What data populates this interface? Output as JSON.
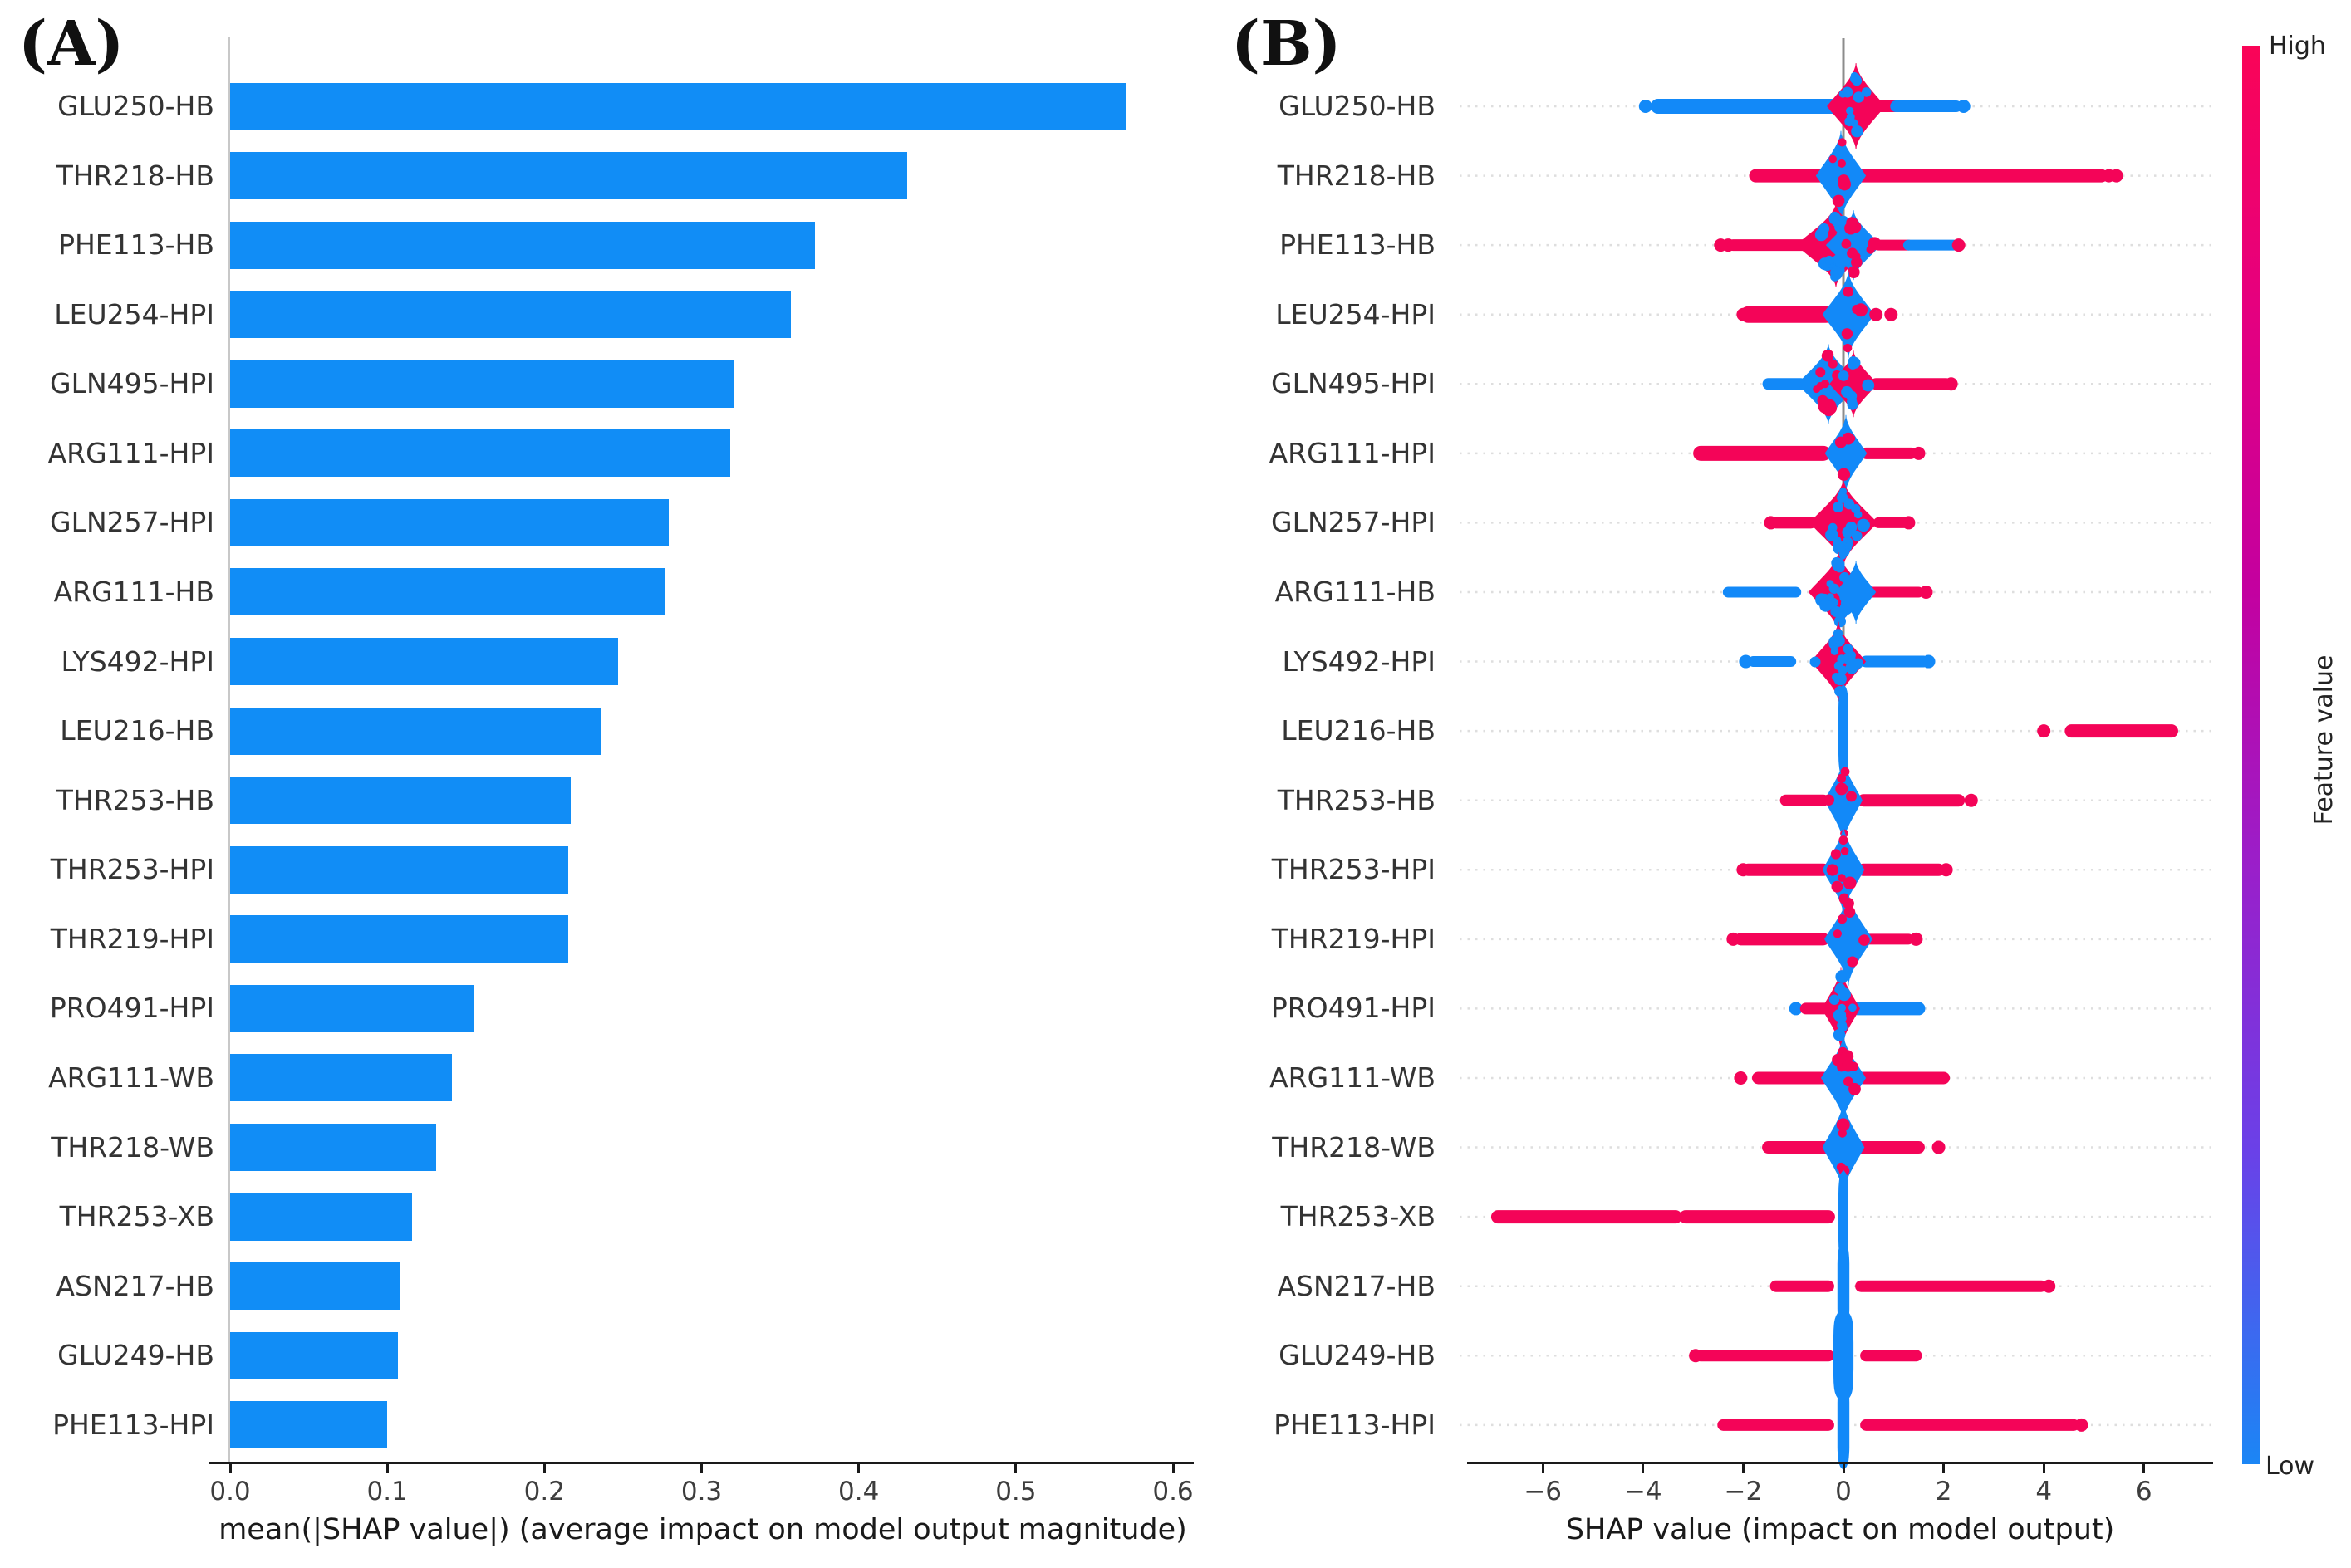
{
  "colors": {
    "red": "#f40458",
    "blue": "#1289f8",
    "bar": "#118df6",
    "zero_line": "#8c8c8c",
    "grid": "#dedede",
    "axis": "#1a1a1a",
    "spine": "#c8c8c8",
    "colorbar_top": "#fa0457",
    "colorbar_bottom": "#1b86f5"
  },
  "chart_data": [
    {
      "id": "A",
      "type": "bar",
      "orientation": "horizontal",
      "title": "(A)",
      "xlabel": "mean(|SHAP value|) (average impact on model output magnitude)",
      "ylabel": "",
      "xlim": [
        0,
        0.6
      ],
      "grid": false,
      "xticks": [
        0,
        0.1,
        0.2,
        0.3,
        0.4,
        0.5,
        0.6
      ],
      "xtick_labels": [
        "0.0",
        "0.1",
        "0.2",
        "0.3",
        "0.4",
        "0.5",
        "0.6"
      ],
      "categories": [
        "GLU250-HB",
        "THR218-HB",
        "PHE113-HB",
        "LEU254-HPI",
        "GLN495-HPI",
        "ARG111-HPI",
        "GLN257-HPI",
        "ARG111-HB",
        "LYS492-HPI",
        "LEU216-HB",
        "THR253-HB",
        "THR253-HPI",
        "THR219-HPI",
        "PRO491-HPI",
        "ARG111-WB",
        "THR218-WB",
        "THR253-XB",
        "ASN217-HB",
        "GLU249-HB",
        "PHE113-HPI"
      ],
      "values": [
        0.57,
        0.431,
        0.372,
        0.357,
        0.321,
        0.318,
        0.279,
        0.277,
        0.247,
        0.236,
        0.217,
        0.215,
        0.215,
        0.155,
        0.141,
        0.131,
        0.116,
        0.108,
        0.107,
        0.1
      ]
    },
    {
      "id": "B",
      "type": "beeswarm",
      "title": "(B)",
      "xlabel": "SHAP value (impact on model output)",
      "xlim": [
        -7.5,
        7.3
      ],
      "grid": "dotted-horizontal",
      "xticks": [
        -6,
        -4,
        -2,
        0,
        2,
        4,
        6
      ],
      "xtick_labels": [
        "−6",
        "−4",
        "−2",
        "0",
        "2",
        "4",
        "6"
      ],
      "colorbar": {
        "high": "High",
        "low": "Low",
        "label": "Feature value"
      },
      "categories": [
        "GLU250-HB",
        "THR218-HB",
        "PHE113-HB",
        "LEU254-HPI",
        "GLN495-HPI",
        "ARG111-HPI",
        "GLN257-HPI",
        "ARG111-HB",
        "LYS492-HPI",
        "LEU216-HB",
        "THR253-HB",
        "THR253-HPI",
        "THR219-HPI",
        "PRO491-HPI",
        "ARG111-WB",
        "THR218-WB",
        "THR253-XB",
        "ASN217-HB",
        "GLU249-HB",
        "PHE113-HPI"
      ],
      "rows": [
        {
          "label": "GLU250-HB",
          "elements": [
            {
              "t": "dot",
              "c": "blue",
              "x": -3.95
            },
            {
              "t": "band",
              "c": "blue",
              "x1": -3.7,
              "x2": -0.2,
              "th": 18
            },
            {
              "t": "band",
              "c": "red",
              "x1": 0.7,
              "x2": 1.05,
              "th": 14
            },
            {
              "t": "band",
              "c": "blue",
              "x1": 1.05,
              "x2": 2.25,
              "th": 14
            },
            {
              "t": "bulge",
              "c": "red",
              "cx": 0.25,
              "hw": 0.58,
              "hh": 52,
              "sp": 12
            },
            {
              "t": "dot",
              "c": "blue",
              "x": 2.4
            }
          ]
        },
        {
          "label": "THR218-HB",
          "elements": [
            {
              "t": "band",
              "c": "red",
              "x1": -1.75,
              "x2": 5.15,
              "th": 16
            },
            {
              "t": "bulge",
              "c": "blue",
              "cx": -0.05,
              "hw": 0.5,
              "hh": 54,
              "sp": 6
            },
            {
              "t": "dot",
              "c": "red",
              "x": 5.3
            },
            {
              "t": "dot",
              "c": "red",
              "x": 5.45
            }
          ]
        },
        {
          "label": "PHE113-HB",
          "elements": [
            {
              "t": "dot",
              "c": "red",
              "x": -2.45
            },
            {
              "t": "dot",
              "c": "red",
              "x": -2.3
            },
            {
              "t": "band",
              "c": "red",
              "x1": -2.2,
              "x2": -0.75,
              "th": 14
            },
            {
              "t": "band",
              "c": "red",
              "x1": 0.7,
              "x2": 1.3,
              "th": 13
            },
            {
              "t": "band",
              "c": "blue",
              "x1": 1.3,
              "x2": 2.2,
              "th": 13
            },
            {
              "t": "bulge",
              "c": "red",
              "cx": -0.15,
              "hw": 0.8,
              "hh": 50,
              "sp": 26
            },
            {
              "t": "bulge",
              "c": "blue",
              "cx": 0.2,
              "hw": 0.55,
              "hh": 42,
              "sp": 12
            },
            {
              "t": "dot",
              "c": "red",
              "x": 2.3
            }
          ]
        },
        {
          "label": "LEU254-HPI",
          "elements": [
            {
              "t": "dot",
              "c": "red",
              "x": -2.0
            },
            {
              "t": "band",
              "c": "red",
              "x1": -1.9,
              "x2": -0.35,
              "th": 20
            },
            {
              "t": "bulge",
              "c": "blue",
              "cx": 0.1,
              "hw": 0.52,
              "hh": 52,
              "sp": 5
            },
            {
              "t": "dot",
              "c": "red",
              "x": 0.65
            },
            {
              "t": "dot",
              "c": "red",
              "x": 0.95
            }
          ]
        },
        {
          "label": "GLN495-HPI",
          "elements": [
            {
              "t": "band",
              "c": "blue",
              "x1": -1.5,
              "x2": -0.85,
              "th": 14
            },
            {
              "t": "band",
              "c": "red",
              "x1": 0.65,
              "x2": 2.05,
              "th": 14
            },
            {
              "t": "bulge",
              "c": "blue",
              "cx": -0.3,
              "hw": 0.62,
              "hh": 48,
              "sp": 14
            },
            {
              "t": "bulge",
              "c": "red",
              "cx": 0.2,
              "hw": 0.48,
              "hh": 40,
              "sp": 10
            },
            {
              "t": "dot",
              "c": "red",
              "x": 2.15
            }
          ]
        },
        {
          "label": "ARG111-HPI",
          "elements": [
            {
              "t": "band",
              "c": "red",
              "x1": -2.85,
              "x2": -0.4,
              "th": 18
            },
            {
              "t": "band",
              "c": "red",
              "x1": 0.45,
              "x2": 1.35,
              "th": 14
            },
            {
              "t": "bulge",
              "c": "blue",
              "cx": 0.05,
              "hw": 0.42,
              "hh": 46,
              "sp": 4
            },
            {
              "t": "dot",
              "c": "red",
              "x": 1.5
            }
          ]
        },
        {
          "label": "GLN257-HPI",
          "elements": [
            {
              "t": "dot",
              "c": "red",
              "x": -1.45
            },
            {
              "t": "band",
              "c": "red",
              "x1": -1.35,
              "x2": -0.65,
              "th": 14
            },
            {
              "t": "band",
              "c": "red",
              "x1": 0.7,
              "x2": 1.2,
              "th": 13
            },
            {
              "t": "bulge",
              "c": "red",
              "cx": 0,
              "hw": 0.68,
              "hh": 52,
              "sp": 26
            },
            {
              "t": "dot",
              "c": "red",
              "x": 1.3
            }
          ]
        },
        {
          "label": "ARG111-HB",
          "elements": [
            {
              "t": "band",
              "c": "blue",
              "x1": -2.3,
              "x2": -0.95,
              "th": 13
            },
            {
              "t": "band",
              "c": "red",
              "x1": 0.55,
              "x2": 1.5,
              "th": 13
            },
            {
              "t": "bulge",
              "c": "red",
              "cx": -0.1,
              "hw": 0.6,
              "hh": 48,
              "sp": 22
            },
            {
              "t": "bulge",
              "c": "blue",
              "cx": 0.25,
              "hw": 0.4,
              "hh": 38,
              "sp": 0
            },
            {
              "t": "dot",
              "c": "red",
              "x": 1.65
            }
          ]
        },
        {
          "label": "LYS492-HPI",
          "elements": [
            {
              "t": "dot",
              "c": "blue",
              "x": -1.95
            },
            {
              "t": "band",
              "c": "blue",
              "x1": -1.8,
              "x2": -1.05,
              "th": 13
            },
            {
              "t": "band",
              "c": "blue",
              "x1": 0.45,
              "x2": 1.6,
              "th": 14
            },
            {
              "t": "bulge",
              "c": "red",
              "cx": -0.1,
              "hw": 0.55,
              "hh": 48,
              "sp": 20
            },
            {
              "t": "dot",
              "c": "blue",
              "x": 1.7
            }
          ]
        },
        {
          "label": "LEU216-HB",
          "elements": [
            {
              "t": "bulge",
              "c": "blue",
              "cx": 0,
              "hw": 0.1,
              "hh": 56,
              "sp": 0
            },
            {
              "t": "dot",
              "c": "red",
              "x": 4.0
            },
            {
              "t": "band",
              "c": "red",
              "x1": 4.55,
              "x2": 6.55,
              "th": 16
            }
          ]
        },
        {
          "label": "THR253-HB",
          "elements": [
            {
              "t": "band",
              "c": "red",
              "x1": -1.15,
              "x2": -0.4,
              "th": 14
            },
            {
              "t": "band",
              "c": "red",
              "x1": 0.4,
              "x2": 2.3,
              "th": 15
            },
            {
              "t": "bulge",
              "c": "blue",
              "cx": 0,
              "hw": 0.38,
              "hh": 52,
              "sp": 6
            },
            {
              "t": "dot",
              "c": "red",
              "x": 2.55
            }
          ]
        },
        {
          "label": "THR253-HPI",
          "elements": [
            {
              "t": "dot",
              "c": "red",
              "x": -2.0
            },
            {
              "t": "band",
              "c": "red",
              "x1": -1.9,
              "x2": -0.4,
              "th": 15
            },
            {
              "t": "band",
              "c": "red",
              "x1": 0.4,
              "x2": 1.9,
              "th": 15
            },
            {
              "t": "bulge",
              "c": "blue",
              "cx": 0,
              "hw": 0.42,
              "hh": 54,
              "sp": 8
            },
            {
              "t": "dot",
              "c": "red",
              "x": 2.05
            }
          ]
        },
        {
          "label": "THR219-HPI",
          "elements": [
            {
              "t": "dot",
              "c": "red",
              "x": -2.2
            },
            {
              "t": "band",
              "c": "red",
              "x1": -2.05,
              "x2": -0.4,
              "th": 15
            },
            {
              "t": "band",
              "c": "red",
              "x1": 0.5,
              "x2": 1.3,
              "th": 13
            },
            {
              "t": "bulge",
              "c": "blue",
              "cx": 0.1,
              "hw": 0.48,
              "hh": 56,
              "sp": 6
            },
            {
              "t": "dot",
              "c": "red",
              "x": 1.45
            }
          ]
        },
        {
          "label": "PRO491-HPI",
          "elements": [
            {
              "t": "dot",
              "c": "blue",
              "x": -0.95
            },
            {
              "t": "band",
              "c": "red",
              "x1": -0.75,
              "x2": -0.3,
              "th": 14
            },
            {
              "t": "band",
              "c": "blue",
              "x1": 0.3,
              "x2": 1.5,
              "th": 16
            },
            {
              "t": "bulge",
              "c": "red",
              "cx": -0.05,
              "hw": 0.38,
              "hh": 50,
              "sp": 12
            }
          ]
        },
        {
          "label": "ARG111-WB",
          "elements": [
            {
              "t": "dot",
              "c": "red",
              "x": -2.05
            },
            {
              "t": "band",
              "c": "red",
              "x1": -1.7,
              "x2": -0.4,
              "th": 15
            },
            {
              "t": "band",
              "c": "red",
              "x1": 0.4,
              "x2": 2.0,
              "th": 15
            },
            {
              "t": "bulge",
              "c": "blue",
              "cx": 0,
              "hw": 0.45,
              "hh": 52,
              "sp": 10
            }
          ]
        },
        {
          "label": "THR218-WB",
          "elements": [
            {
              "t": "band",
              "c": "red",
              "x1": -1.5,
              "x2": -0.35,
              "th": 15
            },
            {
              "t": "band",
              "c": "red",
              "x1": 0.35,
              "x2": 1.5,
              "th": 15
            },
            {
              "t": "bulge",
              "c": "blue",
              "cx": 0,
              "hw": 0.42,
              "hh": 56,
              "sp": 4
            },
            {
              "t": "dot",
              "c": "red",
              "x": 1.9
            }
          ]
        },
        {
          "label": "THR253-XB",
          "elements": [
            {
              "t": "band",
              "c": "red",
              "x1": -6.9,
              "x2": -3.35,
              "th": 16
            },
            {
              "t": "band",
              "c": "red",
              "x1": -3.15,
              "x2": -0.3,
              "th": 16
            },
            {
              "t": "bulge",
              "c": "blue",
              "cx": 0,
              "hw": 0.1,
              "hh": 56,
              "sp": 0
            }
          ]
        },
        {
          "label": "ASN217-HB",
          "elements": [
            {
              "t": "band",
              "c": "red",
              "x1": -1.35,
              "x2": -0.3,
              "th": 14
            },
            {
              "t": "band",
              "c": "red",
              "x1": 0.35,
              "x2": 3.95,
              "th": 14
            },
            {
              "t": "bulge",
              "c": "blue",
              "cx": 0,
              "hw": 0.12,
              "hh": 54,
              "sp": 0
            },
            {
              "t": "dot",
              "c": "red",
              "x": 4.1
            }
          ]
        },
        {
          "label": "GLU249-HB",
          "elements": [
            {
              "t": "dot",
              "c": "red",
              "x": -2.95
            },
            {
              "t": "band",
              "c": "red",
              "x1": -2.85,
              "x2": -0.3,
              "th": 14
            },
            {
              "t": "band",
              "c": "red",
              "x1": 0.45,
              "x2": 1.45,
              "th": 14
            },
            {
              "t": "bulge",
              "c": "blue",
              "cx": 0,
              "hw": 0.2,
              "hh": 56,
              "sp": 0
            }
          ]
        },
        {
          "label": "PHE113-HPI",
          "elements": [
            {
              "t": "band",
              "c": "red",
              "x1": -2.4,
              "x2": -0.3,
              "th": 14
            },
            {
              "t": "band",
              "c": "red",
              "x1": 0.45,
              "x2": 4.6,
              "th": 14
            },
            {
              "t": "bulge",
              "c": "blue",
              "cx": 0,
              "hw": 0.12,
              "hh": 54,
              "sp": 0
            },
            {
              "t": "dot",
              "c": "red",
              "x": 4.75
            }
          ]
        }
      ]
    }
  ]
}
